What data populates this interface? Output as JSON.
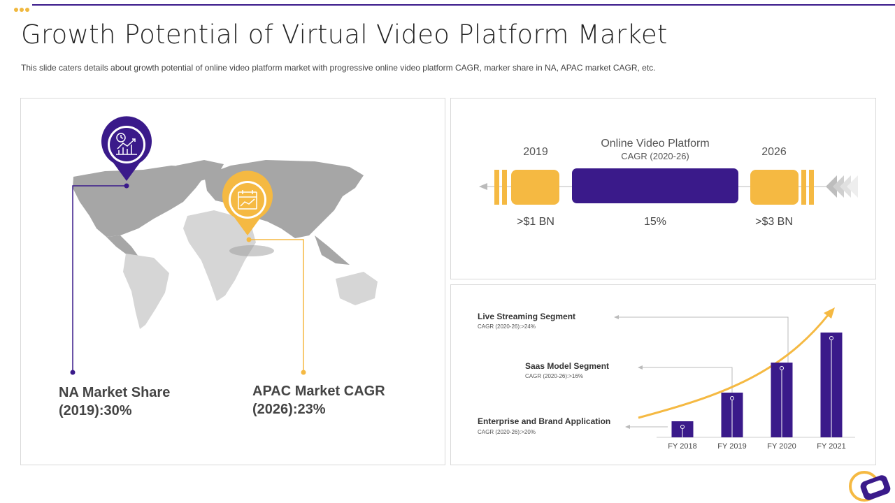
{
  "slide": {
    "title": "Growth Potential of Virtual Video Platform Market",
    "subtitle": "This slide caters details about growth  potential of online video  platform  market with progressive  online video  platform  CAGR,  marker share in NA, APAC market CAGR, etc."
  },
  "map_panel": {
    "na_stat_line1": "NA Market Share",
    "na_stat_line2": "(2019):30%",
    "apac_stat_line1": "APAC Market CAGR",
    "apac_stat_line2": "(2026):23%"
  },
  "cagr_panel": {
    "heading": "Online Video Platform",
    "subheading": "CAGR (2020-26)",
    "year_start": "2019",
    "year_end": "2026",
    "value_start": ">$1 BN",
    "value_mid": "15%",
    "value_end": ">$3 BN"
  },
  "segments": [
    {
      "title": "Live Streaming Segment",
      "sub": "CAGR (2020-26):>24%"
    },
    {
      "title": "Saas Model Segment",
      "sub": "CAGR (2020-26):>16%"
    },
    {
      "title": "Enterprise and Brand Application",
      "sub": "CAGR (2020-26):>20%"
    }
  ],
  "chart_data": {
    "type": "bar",
    "categories": [
      "FY 2018",
      "FY 2019",
      "FY 2020",
      "FY 2021"
    ],
    "values": [
      2.3,
      6.4,
      10.7,
      15
    ],
    "ylim": [
      0,
      16
    ],
    "grid": false
  },
  "colors": {
    "purple": "#3a1a8a",
    "gold": "#f5b942",
    "map_dark": "#a6a6a6",
    "map_light": "#d6d6d6"
  }
}
